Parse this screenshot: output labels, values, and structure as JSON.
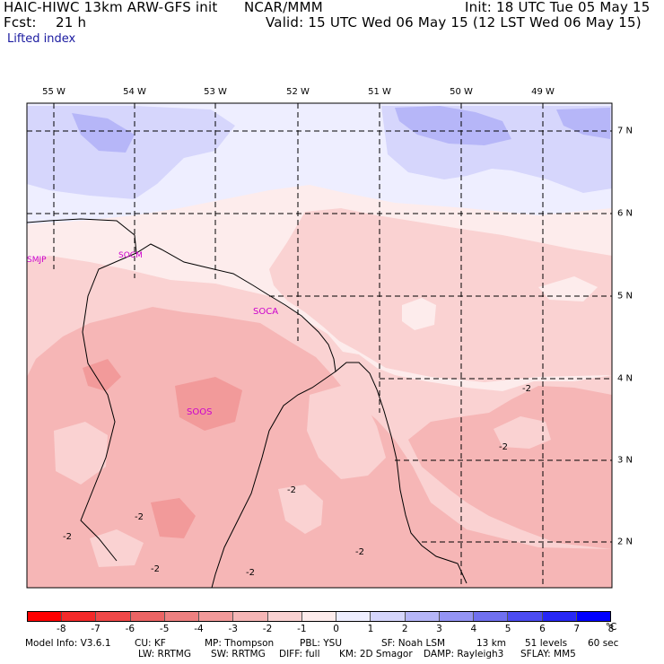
{
  "header": {
    "model": "HAIC-HIWC 13km ARW-GFS init",
    "org": "NCAR/MMM",
    "init": "Init: 18 UTC Tue 05 May 15",
    "fcst_label": "Fcst:",
    "fcst_value": "21 h",
    "valid": "Valid: 15 UTC Wed 06 May 15 (12 LST Wed 06 May 15)",
    "field": "Lifted index"
  },
  "map": {
    "lon_labels": [
      "55 W",
      "54 W",
      "53 W",
      "52 W",
      "51 W",
      "50 W",
      "49 W"
    ],
    "lat_labels": [
      "7 N",
      "6 N",
      "5 N",
      "4 N",
      "3 N",
      "2 N"
    ],
    "stations": [
      "SMJP",
      "SOCM",
      "SOCA",
      "SOOS"
    ],
    "contour_labels": [
      "-2",
      "-2",
      "-2",
      "-2",
      "-2",
      "-2",
      "-2",
      "-2"
    ],
    "colors": {
      "land_border": "#000000",
      "grid_line": "#000000",
      "station": "#cc00cc",
      "contour": "#990000"
    }
  },
  "colorbar": {
    "unit": "°C",
    "ticks": [
      "-8",
      "-7",
      "-6",
      "-5",
      "-4",
      "-3",
      "-2",
      "-1",
      "0",
      "1",
      "2",
      "3",
      "4",
      "5",
      "6",
      "7",
      "8"
    ],
    "colors": [
      "#ff0000",
      "#f42a2a",
      "#f04848",
      "#ec6464",
      "#ee8080",
      "#f29a9a",
      "#f6b6b6",
      "#fad2d2",
      "#fdecec",
      "#eeeeff",
      "#d6d6fc",
      "#b6b6f8",
      "#9494f4",
      "#7070f0",
      "#4c4cf2",
      "#2828f6",
      "#0000ff"
    ]
  },
  "footer": {
    "line1": [
      "Model Info: V3.6.1",
      "CU: KF",
      "MP: Thompson",
      "PBL: YSU",
      "SF: Noah LSM",
      "13 km",
      "51 levels",
      "60 sec"
    ],
    "line2": [
      "LW: RRTMG",
      "SW: RRTMG",
      "DIFF: full",
      "KM: 2D Smagor",
      "DAMP: Rayleigh3",
      "SFLAY: MM5"
    ]
  }
}
